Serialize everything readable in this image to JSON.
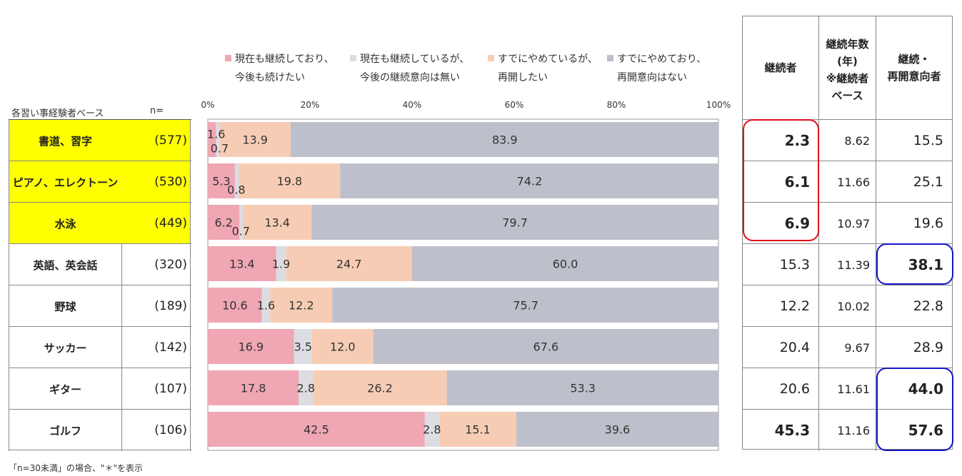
{
  "legend": [
    {
      "line1": "現在も継続しており、",
      "line2": "今後も続けたい",
      "color": "#efa7b3"
    },
    {
      "line1": "現在も継続しているが、",
      "line2": "今後の継続意向は無い",
      "color": "#dcdde2"
    },
    {
      "line1": "すでにやめているが、",
      "line2": "再開したい",
      "color": "#f6cdb4"
    },
    {
      "line1": "すでにやめており、",
      "line2": "再開意向はない",
      "color": "#bdc0ca"
    }
  ],
  "base_label": "各習い事経験者ベース",
  "n_label": "n=",
  "axis_ticks": [
    "0%",
    "20%",
    "40%",
    "60%",
    "80%",
    "100%"
  ],
  "rows": [
    {
      "name": "書道、習字",
      "n": "(577)",
      "highlight": true,
      "continuing": "2.3",
      "years": "8.62",
      "reopen": "15.5"
    },
    {
      "name": "ピアノ、エレクトーン",
      "n": "(530)",
      "highlight": true,
      "continuing": "6.1",
      "years": "11.66",
      "reopen": "25.1"
    },
    {
      "name": "水泳",
      "n": "(449)",
      "highlight": true,
      "continuing": "6.9",
      "years": "10.97",
      "reopen": "19.6"
    },
    {
      "name": "英語、英会話",
      "n": "(320)",
      "highlight": false,
      "continuing": "15.3",
      "years": "11.39",
      "reopen": "38.1"
    },
    {
      "name": "野球",
      "n": "(189)",
      "highlight": false,
      "continuing": "12.2",
      "years": "10.02",
      "reopen": "22.8"
    },
    {
      "name": "サッカー",
      "n": "(142)",
      "highlight": false,
      "continuing": "20.4",
      "years": "9.67",
      "reopen": "28.9"
    },
    {
      "name": "ギター",
      "n": "(107)",
      "highlight": false,
      "continuing": "20.6",
      "years": "11.61",
      "reopen": "44.0"
    },
    {
      "name": "ゴルフ",
      "n": "(106)",
      "highlight": false,
      "continuing": "45.3",
      "years": "11.16",
      "reopen": "57.6"
    }
  ],
  "right_headers": {
    "continuing": "継続者",
    "years": [
      "継続年数",
      "(年)",
      "※継続者",
      "ベース"
    ],
    "reopen": [
      "継続・",
      "再開意向者"
    ]
  },
  "footnote": "「n=30未満」の場合、\"＊\"を表示",
  "chart_data": {
    "type": "bar",
    "orientation": "horizontal",
    "stacked": true,
    "percent": true,
    "categories": [
      "書道、習字",
      "ピアノ、エレクトーン",
      "水泳",
      "英語、英会話",
      "野球",
      "サッカー",
      "ギター",
      "ゴルフ"
    ],
    "xlim": [
      0,
      100
    ],
    "series": [
      {
        "name": "現在も継続しており、今後も続けたい",
        "values": [
          1.6,
          5.3,
          6.2,
          13.4,
          10.6,
          16.9,
          17.8,
          42.5
        ],
        "color": "#efa7b3"
      },
      {
        "name": "現在も継続しているが、今後の継続意向は無い",
        "values": [
          0.7,
          0.8,
          0.7,
          1.9,
          1.6,
          3.5,
          2.8,
          2.8
        ],
        "color": "#dcdde2"
      },
      {
        "name": "すでにやめているが、再開したい",
        "values": [
          13.9,
          19.8,
          13.4,
          24.7,
          12.2,
          12.0,
          26.2,
          15.1
        ],
        "color": "#f6cdb4"
      },
      {
        "name": "すでにやめており、再開意向はない",
        "values": [
          83.9,
          74.2,
          79.7,
          60.0,
          75.7,
          67.6,
          53.3,
          39.6
        ],
        "color": "#bdc0ca"
      }
    ],
    "value_labels": [
      [
        "1.6",
        "0.7",
        "13.9",
        "83.9"
      ],
      [
        "5.3",
        "0.8",
        "19.8",
        "74.2"
      ],
      [
        "6.2",
        "0.7",
        "13.4",
        "79.7"
      ],
      [
        "13.4",
        "1.9",
        "24.7",
        "60.0"
      ],
      [
        "10.6",
        "1.6",
        "12.2",
        "75.7"
      ],
      [
        "16.9",
        "3.5",
        "12.0",
        "67.6"
      ],
      [
        "17.8",
        "2.8",
        "26.2",
        "53.3"
      ],
      [
        "42.5",
        "2.8",
        "15.1",
        "39.6"
      ]
    ]
  }
}
